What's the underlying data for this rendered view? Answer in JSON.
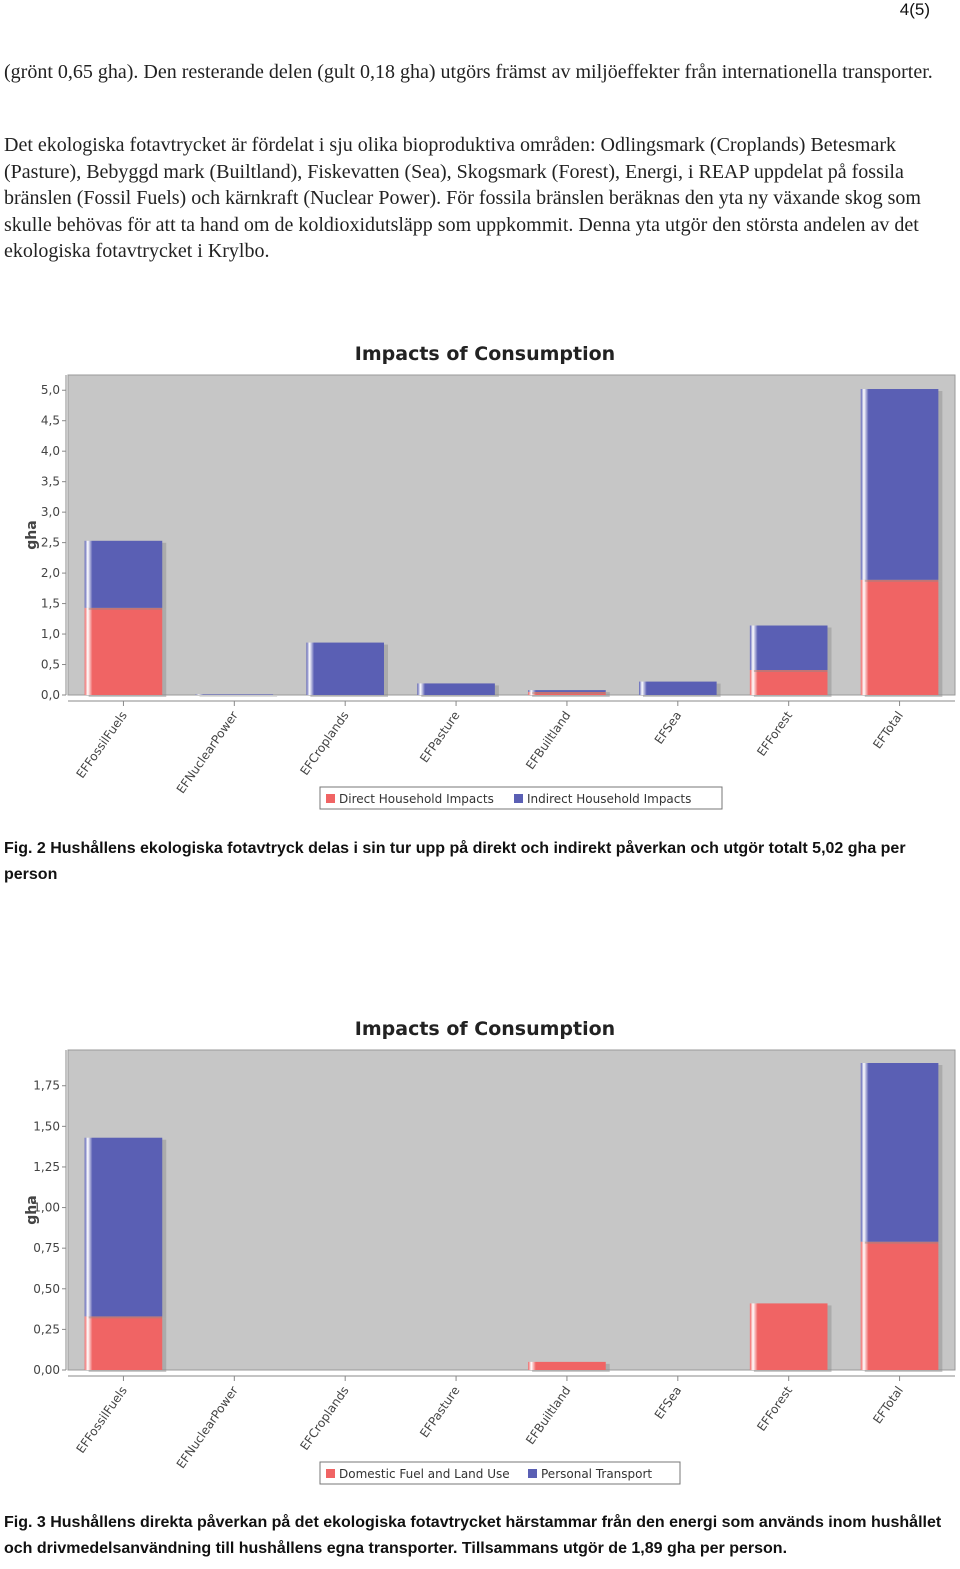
{
  "page_number": "4(5)",
  "paragraphs": [
    "(grönt 0,65 gha). Den resterande delen (gult 0,18 gha) utgörs främst av miljöeffekter från internationella transporter.",
    "Det ekologiska fotavtrycket är fördelat i sju olika bioproduktiva områden: Odlingsmark (Croplands) Betesmark (Pasture), Bebyggd mark (Builtland), Fiskevatten (Sea), Skogsmark (Forest), Energi, i REAP uppdelat på fossila bränslen (Fossil Fuels) och kärnkraft (Nuclear Power). För fossila bränslen beräknas den yta ny växande skog som skulle behövas för att ta hand om de koldioxidutsläpp som uppkommit. Denna yta utgör den största andelen av det ekologiska fotavtrycket i Krylbo."
  ],
  "captions": [
    "Fig. 2 Hushållens ekologiska fotavtryck delas i sin tur upp på direkt och indirekt påverkan och utgör totalt 5,02 gha per person",
    "Fig. 3 Hushållens direkta påverkan på det ekologiska fotavtrycket härstammar från den energi som används inom hushållet och drivmedelsanvändning till hushållens egna transporter. Tillsammans utgör de 1,89 gha per person."
  ],
  "colors": {
    "plot_bg": "#c6c6c6",
    "series_red": "#f06464",
    "series_blue": "#5a5fb4"
  },
  "chart_data": [
    {
      "type": "bar",
      "stacked": true,
      "title": "Impacts of Consumption",
      "ylabel": "gha",
      "xlabel": "",
      "ylim": [
        0,
        5.25
      ],
      "yticks": [
        "0,0",
        "0,5",
        "1,0",
        "1,5",
        "2,0",
        "2,5",
        "3,0",
        "3,5",
        "4,0",
        "4,5",
        "5,0"
      ],
      "ytick_values": [
        0,
        0.5,
        1,
        1.5,
        2,
        2.5,
        3,
        3.5,
        4,
        4.5,
        5
      ],
      "categories": [
        "EFFossilFuels",
        "EFNuclearPower",
        "EFCroplands",
        "EFPasture",
        "EFBuiltland",
        "EFSea",
        "EFForest",
        "EFTotal"
      ],
      "series": [
        {
          "name": "Direct Household Impacts",
          "values": [
            1.43,
            0.0,
            0.0,
            0.0,
            0.05,
            0.0,
            0.41,
            1.89
          ]
        },
        {
          "name": "Indirect Household Impacts",
          "values": [
            1.1,
            0.01,
            0.86,
            0.19,
            0.03,
            0.22,
            0.73,
            3.13
          ]
        }
      ],
      "legend": "bottom",
      "grid": false
    },
    {
      "type": "bar",
      "stacked": true,
      "title": "Impacts of Consumption",
      "ylabel": "gha",
      "xlabel": "",
      "ylim": [
        0,
        1.97
      ],
      "yticks": [
        "0,00",
        "0,25",
        "0,50",
        "0,75",
        "1,00",
        "1,25",
        "1,50",
        "1,75"
      ],
      "ytick_values": [
        0,
        0.25,
        0.5,
        0.75,
        1,
        1.25,
        1.5,
        1.75
      ],
      "categories": [
        "EFFossilFuels",
        "EFNuclearPower",
        "EFCroplands",
        "EFPasture",
        "EFBuiltland",
        "EFSea",
        "EFForest",
        "EFTotal"
      ],
      "series": [
        {
          "name": "Domestic Fuel and Land Use",
          "values": [
            0.33,
            0.0,
            0.0,
            0.0,
            0.05,
            0.0,
            0.41,
            0.79
          ]
        },
        {
          "name": "Personal Transport",
          "values": [
            1.1,
            0.0,
            0.0,
            0.0,
            0.0,
            0.0,
            0.0,
            1.1
          ]
        }
      ],
      "legend": "bottom",
      "grid": false
    }
  ]
}
